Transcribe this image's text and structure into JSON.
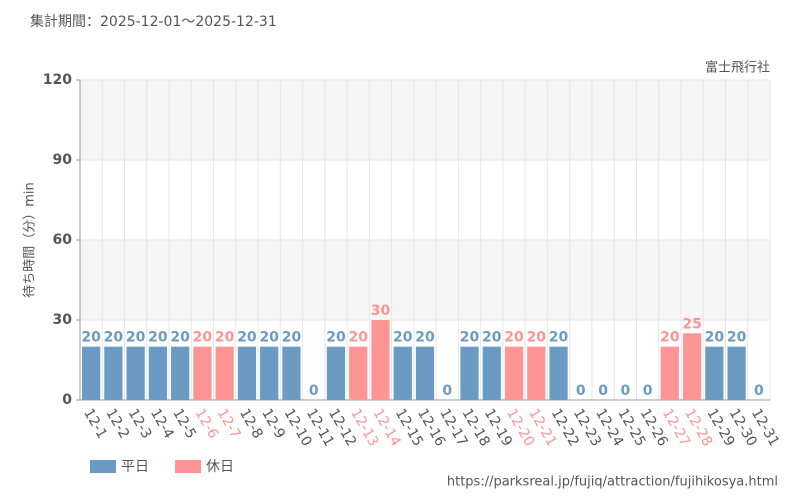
{
  "chart_data": {
    "type": "bar",
    "subtitle": "集計期間：2025-12-01～2025-12-31",
    "source_label": "富士飛行社",
    "y_label": "待ち時間（分）min",
    "footer": "https://parksreal.jp/fujiq/attraction/fujihikosya.html",
    "categories": [
      "12-1",
      "12-2",
      "12-3",
      "12-4",
      "12-5",
      "12-6",
      "12-7",
      "12-8",
      "12-9",
      "12-10",
      "12-11",
      "12-12",
      "12-13",
      "12-14",
      "12-15",
      "12-16",
      "12-17",
      "12-18",
      "12-19",
      "12-20",
      "12-21",
      "12-22",
      "12-23",
      "12-24",
      "12-25",
      "12-26",
      "12-27",
      "12-28",
      "12-29",
      "12-30",
      "12-31"
    ],
    "series": [
      {
        "name": "平日",
        "color": "#6b9bc3",
        "values": [
          20,
          20,
          20,
          20,
          20,
          null,
          null,
          20,
          20,
          20,
          0,
          20,
          null,
          null,
          20,
          20,
          0,
          20,
          20,
          null,
          null,
          20,
          0,
          0,
          0,
          0,
          null,
          null,
          20,
          20,
          0
        ]
      },
      {
        "name": "休日",
        "color": "#ff9494",
        "values": [
          null,
          null,
          null,
          null,
          null,
          20,
          20,
          null,
          null,
          null,
          null,
          null,
          20,
          30,
          null,
          null,
          null,
          null,
          null,
          20,
          20,
          null,
          null,
          null,
          null,
          null,
          20,
          25,
          null,
          null,
          null
        ]
      }
    ],
    "ylim": [
      0,
      120
    ],
    "yticks": [
      0,
      30,
      60,
      90,
      120
    ],
    "grid": true
  }
}
